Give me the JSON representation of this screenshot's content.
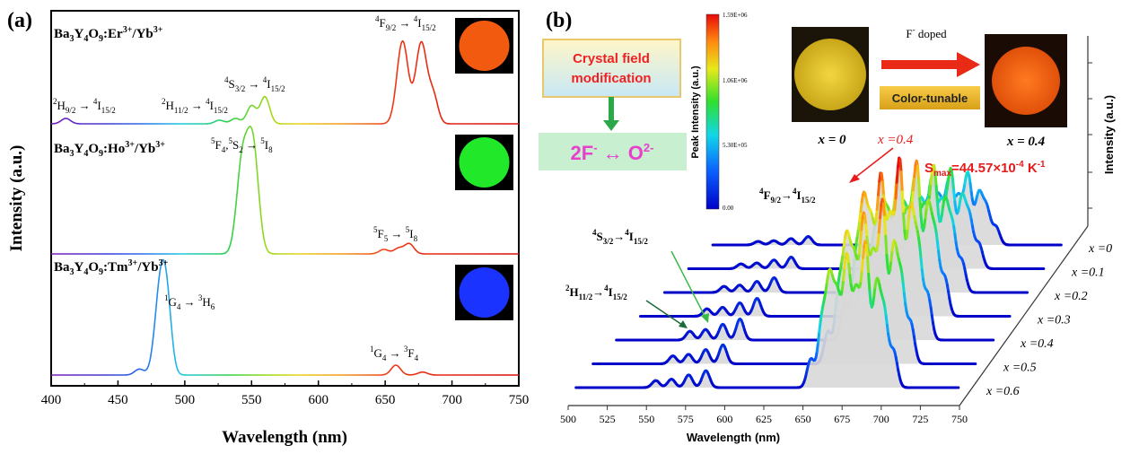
{
  "panel_a": {
    "label": "(a)",
    "xlabel": "Wavelength (nm)",
    "ylabel": "Intensity (a.u.)",
    "ticks": [
      "400",
      "450",
      "500",
      "550",
      "600",
      "650",
      "700",
      "750"
    ],
    "samples": [
      {
        "name_main": "Ba",
        "s1": "3",
        "m1": "Y",
        "s2": "4",
        "m2": "O",
        "s3": "9",
        "m3": ":Er",
        "p1": "3+",
        "m4": "/Yb",
        "p2": "3+",
        "swatch": "#f25a10"
      },
      {
        "name_main": "Ba",
        "s1": "3",
        "m1": "Y",
        "s2": "4",
        "m2": "O",
        "s3": "9",
        "m3": ":Ho",
        "p1": "3+",
        "m4": "/Yb",
        "p2": "3+",
        "swatch": "#22e82a"
      },
      {
        "name_main": "Ba",
        "s1": "3",
        "m1": "Y",
        "s2": "4",
        "m2": "O",
        "s3": "9",
        "m3": ":Tm",
        "p1": "3+",
        "m4": "/Yb",
        "p2": "3+",
        "swatch": "#1a33ff"
      }
    ],
    "transitions": {
      "er1": {
        "a": "2",
        "b": "H",
        "c": "9/2",
        "arrow": " → ",
        "d": "4",
        "e": "I",
        "f": "15/2"
      },
      "er2": {
        "a": "2",
        "b": "H",
        "c": "11/2",
        "arrow": " → ",
        "d": "4",
        "e": "I",
        "f": "15/2"
      },
      "er3": {
        "a": "4",
        "b": "S",
        "c": "3/2",
        "arrow": " → ",
        "d": "4",
        "e": "I",
        "f": "15/2"
      },
      "er4": {
        "a": "4",
        "b": "F",
        "c": "9/2",
        "arrow": " → ",
        "d": "4",
        "e": "I",
        "f": "15/2"
      },
      "ho1": {
        "a": "5",
        "b": "F",
        "c": "4",
        "sep": ",",
        "a2": "5",
        "b2": "S",
        "c2": "2",
        "arrow": " → ",
        "d": "5",
        "e": "I",
        "f": "8"
      },
      "ho2": {
        "a": "5",
        "b": "F",
        "c": "5",
        "arrow": " → ",
        "d": "5",
        "e": "I",
        "f": "8"
      },
      "tm1": {
        "a": "1",
        "b": "G",
        "c": "4",
        "arrow": " → ",
        "d": "3",
        "e": "H",
        "f": "6"
      },
      "tm2": {
        "a": "1",
        "b": "G",
        "c": "4",
        "arrow": " → ",
        "d": "3",
        "e": "F",
        "f": "4"
      }
    }
  },
  "panel_b": {
    "label": "(b)",
    "xlabel": "Wavelength (nm)",
    "ylabel": "Intensity (a.u.)",
    "ticks": [
      "500",
      "525",
      "550",
      "575",
      "600",
      "625",
      "650",
      "675",
      "700",
      "725",
      "750"
    ],
    "series_labels": [
      "x =0",
      "x =0.1",
      "x =0.2",
      "x =0.3",
      "x =0.4",
      "x =0.5",
      "x =0.6"
    ],
    "colorbar": {
      "title": "Peak Intensity (a.u.)",
      "max": "1.59E+06",
      "t2": "1.06E+06",
      "t1": "5.30E+05",
      "min": "0.00"
    },
    "crystal_box": {
      "line1": "Crystal field",
      "line2": "modification"
    },
    "exchange": {
      "left": "2F",
      "lsup": "-",
      "arrow": " ↔ ",
      "right": "O",
      "rsup": "2-"
    },
    "doping": {
      "f": "F",
      "fsup": "-",
      "text": " doped",
      "tunable": "Color-tunable"
    },
    "photo_labels": {
      "left": "x = 0",
      "right": "x = 0.4"
    },
    "peak_label": "x =0.4",
    "smax": {
      "a": "S",
      "sub": "max",
      "b": "=44.57×10",
      "sup": "-4",
      "c": " K",
      "sup2": "-1"
    },
    "trans": {
      "f": {
        "a": "4",
        "b": "F",
        "c": "9/2",
        "arrow": "→",
        "d": "4",
        "e": "I",
        "f": "15/2"
      },
      "s": {
        "a": "4",
        "b": "S",
        "c": "3/2",
        "arrow": "→",
        "d": "4",
        "e": "I",
        "f": "15/2"
      },
      "h": {
        "a": "2",
        "b": "H",
        "c": "11/2",
        "arrow": "→",
        "d": "4",
        "e": "I",
        "f": "15/2"
      }
    },
    "colors": {
      "left_photo": "#e4c22a",
      "right_photo": "#f66a14",
      "box_text": "#ee2222",
      "exchange_text": "#e840cc",
      "bar_text": "#e8c400"
    }
  },
  "chart_data": [
    {
      "type": "line",
      "title": "(a)",
      "xlabel": "Wavelength (nm)",
      "ylabel": "Intensity (a.u.)",
      "xlim": [
        400,
        750
      ],
      "series": [
        {
          "name": "Ba3Y4O9:Er3+/Yb3+",
          "peaks": [
            {
              "x": 411,
              "h": 0.06
            },
            {
              "x": 526,
              "h": 0.04
            },
            {
              "x": 538,
              "h": 0.06
            },
            {
              "x": 550,
              "h": 0.2
            },
            {
              "x": 560,
              "h": 0.3
            },
            {
              "x": 663,
              "h": 0.92
            },
            {
              "x": 677,
              "h": 0.9
            },
            {
              "x": 686,
              "h": 0.3
            }
          ]
        },
        {
          "name": "Ba3Y4O9:Ho3+/Yb3+",
          "peaks": [
            {
              "x": 543,
              "h": 0.8
            },
            {
              "x": 551,
              "h": 0.95
            },
            {
              "x": 649,
              "h": 0.04
            },
            {
              "x": 660,
              "h": 0.05
            },
            {
              "x": 668,
              "h": 0.09
            }
          ]
        },
        {
          "name": "Ba3Y4O9:Tm3+/Yb3+",
          "peaks": [
            {
              "x": 466,
              "h": 0.06
            },
            {
              "x": 482,
              "h": 0.92
            },
            {
              "x": 487,
              "h": 0.5
            },
            {
              "x": 658,
              "h": 0.1
            },
            {
              "x": 678,
              "h": 0.03
            }
          ]
        }
      ]
    },
    {
      "type": "line",
      "title": "(b)",
      "xlabel": "Wavelength (nm)",
      "ylabel": "Intensity (a.u.)",
      "xlim": [
        500,
        750
      ],
      "series": [
        {
          "name": "x =0",
          "scale": 0.4
        },
        {
          "name": "x =0.1",
          "scale": 0.55
        },
        {
          "name": "x =0.2",
          "scale": 0.7
        },
        {
          "name": "x =0.3",
          "scale": 0.85
        },
        {
          "name": "x =0.4",
          "scale": 1.0
        },
        {
          "name": "x =0.5",
          "scale": 0.9
        },
        {
          "name": "x =0.6",
          "scale": 0.8
        }
      ]
    }
  ]
}
